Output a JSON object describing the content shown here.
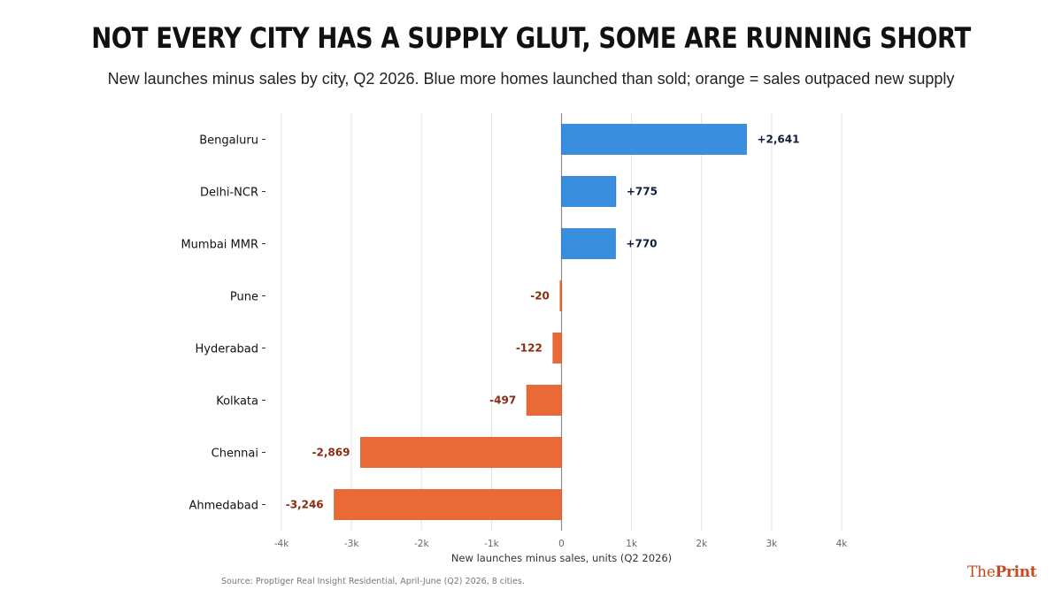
{
  "header": {
    "title": "NOT EVERY CITY HAS A SUPPLY GLUT, SOME ARE RUNNING SHORT",
    "subtitle": "New launches minus sales by city, Q2 2026. Blue more homes launched than sold; orange = sales outpaced new supply"
  },
  "footer": {
    "source": "Source: Proptiger Real Insight Residential, April-June (Q2) 2026, 8 cities.",
    "logo_the": "The",
    "logo_print": "Print"
  },
  "colors": {
    "positive": "#3a8ee0",
    "negative": "#ea6a37",
    "positive_label": "#0d1f3c",
    "negative_label": "#8a2a10"
  },
  "chart_data": {
    "type": "bar",
    "orientation": "horizontal",
    "categories": [
      "Bengaluru",
      "Delhi-NCR",
      "Mumbai MMR",
      "Pune",
      "Hyderabad",
      "Kolkata",
      "Chennai",
      "Ahmedabad"
    ],
    "values": [
      2641,
      775,
      770,
      -20,
      -122,
      -497,
      -2869,
      -3246
    ],
    "data_labels": [
      "+2,641",
      "+775",
      "+770",
      "-20",
      "-122",
      "-497",
      "-2,869",
      "-3,246"
    ],
    "xlabel": "New launches minus sales, units (Q2 2026)",
    "ylabel": "",
    "xlim": [
      -4000,
      4000
    ],
    "xticks": [
      -4000,
      -3000,
      -2000,
      -1000,
      0,
      1000,
      2000,
      3000,
      4000
    ],
    "xtick_labels": [
      "-4k",
      "-3k",
      "-2k",
      "-1k",
      "0",
      "1k",
      "2k",
      "3k",
      "4k"
    ],
    "grid": "vertical"
  }
}
